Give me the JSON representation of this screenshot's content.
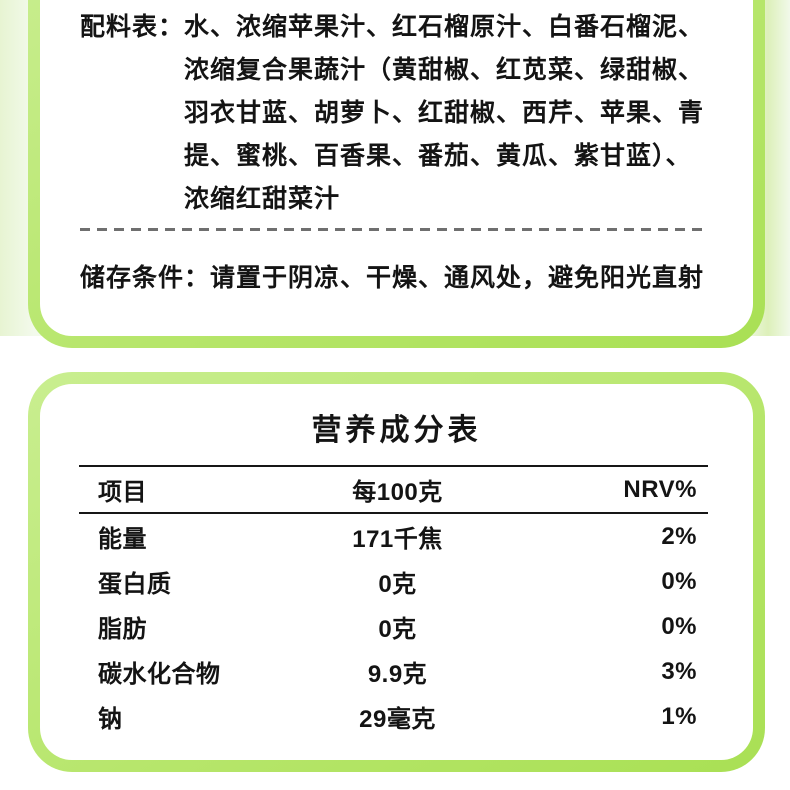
{
  "card_style": {
    "frame_green": "#b7e66c",
    "frame_green_light": "#c9ee90",
    "frame_green_dark": "#a9e054",
    "pale_background": "#f0f8e6",
    "text_color": "#141414",
    "divider_color": "#6f6f6f"
  },
  "ingredients": {
    "label": "配料表：",
    "lines": [
      "水、浓缩苹果汁、红石榴原汁、白番石榴泥、",
      "浓缩复合果蔬汁（黄甜椒、红苋菜、绿甜椒、",
      "羽衣甘蓝、胡萝卜、红甜椒、西芹、苹果、青",
      "提、蜜桃、百香果、番茄、黄瓜、紫甘蓝）、",
      "浓缩红甜菜汁"
    ]
  },
  "storage": {
    "label": "储存条件：",
    "text": "请置于阴凉、干燥、通风处，避免阳光直射"
  },
  "nutrition": {
    "title": "营养成分表",
    "headers": [
      "项目",
      "每100克",
      "NRV%"
    ],
    "rows": [
      {
        "item": "能量",
        "per100g": "171千焦",
        "nrv": "2%"
      },
      {
        "item": "蛋白质",
        "per100g": "0克",
        "nrv": "0%"
      },
      {
        "item": "脂肪",
        "per100g": "0克",
        "nrv": "0%"
      },
      {
        "item": "碳水化合物",
        "per100g": "9.9克",
        "nrv": "3%"
      },
      {
        "item": "钠",
        "per100g": "29毫克",
        "nrv": "1%"
      }
    ]
  }
}
